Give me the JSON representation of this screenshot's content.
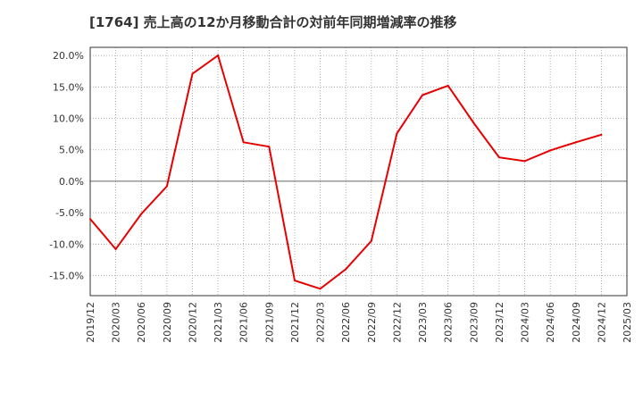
{
  "chart_data": {
    "type": "line",
    "title": "[1764]  売上高の12か月移動合計の対前年同期増減率の推移",
    "xlabel": "",
    "ylabel": "",
    "x": [
      "2019/12",
      "2020/03",
      "2020/06",
      "2020/09",
      "2020/12",
      "2021/03",
      "2021/06",
      "2021/09",
      "2021/12",
      "2022/03",
      "2022/06",
      "2022/09",
      "2022/12",
      "2023/03",
      "2023/06",
      "2023/09",
      "2023/12",
      "2024/03",
      "2024/06",
      "2024/09",
      "2024/12",
      "2025/03"
    ],
    "y_tick_labels": [
      "20.0%",
      "15.0%",
      "10.0%",
      "5.0%",
      "0.0%",
      "-5.0%",
      "-10.0%",
      "-15.0%"
    ],
    "y_ticks": [
      20,
      15,
      10,
      5,
      0,
      -5,
      -10,
      -15
    ],
    "ylim": [
      -18.2,
      21.3
    ],
    "grid": true,
    "series": [
      {
        "name": "増減率",
        "color": "#e60000",
        "values": [
          -6.0,
          -10.8,
          -5.2,
          -0.8,
          17.1,
          20.0,
          6.2,
          5.5,
          -15.8,
          -17.1,
          -14.0,
          -9.5,
          7.6,
          13.7,
          15.2,
          9.3,
          3.8,
          3.2,
          4.9,
          6.2,
          7.4,
          null
        ]
      }
    ],
    "colors": {
      "line": "#e60000",
      "grid": "#999999",
      "zero_line": "#666666",
      "axis": "#333333"
    }
  }
}
